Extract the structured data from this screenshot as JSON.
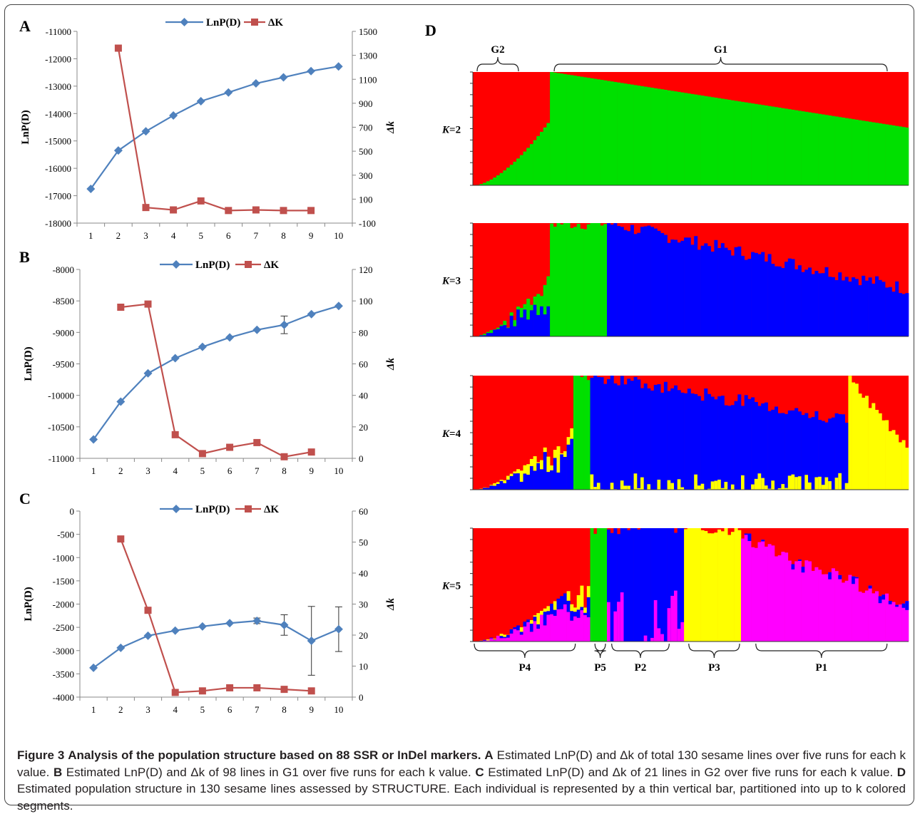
{
  "figure": {
    "caption_label": "Figure 3",
    "caption_title": "Analysis of the population structure based on 88 SSR or InDel markers.",
    "caption_parts": [
      {
        "label": "A",
        "text": "Estimated LnP(D) and Δk of total 130 sesame lines over five runs for each k value."
      },
      {
        "label": "B",
        "text": "Estimated LnP(D) and Δk of 98 lines in G1 over five runs for each k value."
      },
      {
        "label": "C",
        "text": "Estimated LnP(D) and Δk of 21 lines in G2 over five runs for each k value."
      },
      {
        "label": "D",
        "text": "Estimated population structure in 130 sesame lines assessed by STRUCTURE. Each individual is represented by a thin vertical bar, partitioned into up to k colored segments."
      }
    ]
  },
  "colors": {
    "lnp": "#4f81bd",
    "dk": "#c0504d",
    "struct_red": "#ff0000",
    "struct_green": "#00e000",
    "struct_blue": "#0000ff",
    "struct_yellow": "#ffff00",
    "struct_magenta": "#ff00ff"
  },
  "chart_data": [
    {
      "type": "line",
      "panel": "A",
      "x": [
        1,
        2,
        3,
        4,
        5,
        6,
        7,
        8,
        9,
        10
      ],
      "series": [
        {
          "name": "LnP(D)",
          "axis": "left",
          "marker": "diamond",
          "values": [
            -16750,
            -15350,
            -14650,
            -14070,
            -13550,
            -13230,
            -12900,
            -12680,
            -12450,
            -12280
          ]
        },
        {
          "name": "ΔK",
          "axis": "right",
          "marker": "square",
          "values": [
            null,
            1360,
            30,
            10,
            85,
            5,
            10,
            5,
            5,
            null
          ]
        }
      ],
      "ylabel": "LnP(D)",
      "y2label": "Δk",
      "ylim": [
        -18000,
        -11000
      ],
      "y2lim": [
        -100,
        1500
      ],
      "yticks": [
        -18000,
        -17000,
        -16000,
        -15000,
        -14000,
        -13000,
        -12000,
        -11000
      ],
      "y2ticks": [
        -100,
        100,
        300,
        500,
        700,
        900,
        1100,
        1300,
        1500
      ],
      "xticks": [
        1,
        2,
        3,
        4,
        5,
        6,
        7,
        8,
        9,
        10
      ],
      "legend": "top"
    },
    {
      "type": "line",
      "panel": "B",
      "x": [
        1,
        2,
        3,
        4,
        5,
        6,
        7,
        8,
        9,
        10
      ],
      "series": [
        {
          "name": "LnP(D)",
          "axis": "left",
          "marker": "diamond",
          "values": [
            -10700,
            -10100,
            -9650,
            -9410,
            -9230,
            -9080,
            -8960,
            -8880,
            -8710,
            -8580
          ],
          "error": [
            0,
            0,
            0,
            0,
            0,
            0,
            0,
            140,
            0,
            0
          ]
        },
        {
          "name": "ΔK",
          "axis": "right",
          "marker": "square",
          "values": [
            null,
            96,
            98,
            15,
            3,
            7,
            10,
            1,
            4,
            null
          ]
        }
      ],
      "ylabel": "LnP(D)",
      "y2label": "Δk",
      "ylim": [
        -11000,
        -8000
      ],
      "y2lim": [
        0,
        120
      ],
      "yticks": [
        -11000,
        -10500,
        -10000,
        -9500,
        -9000,
        -8500,
        -8000
      ],
      "y2ticks": [
        0,
        20,
        40,
        60,
        80,
        100,
        120
      ],
      "xticks": [
        1,
        2,
        3,
        4,
        5,
        6,
        7,
        8,
        9,
        10
      ],
      "legend": "top"
    },
    {
      "type": "line",
      "panel": "C",
      "x": [
        1,
        2,
        3,
        4,
        5,
        6,
        7,
        8,
        9,
        10
      ],
      "series": [
        {
          "name": "LnP(D)",
          "axis": "left",
          "marker": "diamond",
          "values": [
            -3370,
            -2940,
            -2680,
            -2570,
            -2480,
            -2410,
            -2360,
            -2450,
            -2790,
            -2540
          ],
          "error": [
            0,
            0,
            0,
            0,
            0,
            0,
            60,
            220,
            740,
            480
          ]
        },
        {
          "name": "ΔK",
          "axis": "right",
          "marker": "square",
          "values": [
            null,
            51,
            28,
            1.5,
            2,
            3,
            3,
            2.5,
            2,
            null
          ]
        }
      ],
      "ylabel": "LnP(D)",
      "y2label": "Δk",
      "ylim": [
        -4000,
        0
      ],
      "y2lim": [
        0,
        60
      ],
      "yticks": [
        -4000,
        -3500,
        -3000,
        -2500,
        -2000,
        -1500,
        -1000,
        -500,
        0
      ],
      "y2ticks": [
        0,
        10,
        20,
        30,
        40,
        50,
        60
      ],
      "xticks": [
        1,
        2,
        3,
        4,
        5,
        6,
        7,
        8,
        9,
        10
      ],
      "legend": "top"
    },
    {
      "type": "bar",
      "panel": "D",
      "stacked": true,
      "individuals": 130,
      "groups_top": [
        {
          "label": "G2",
          "start": 0,
          "end": 20
        },
        {
          "label": "G1",
          "start": 23,
          "end": 130
        }
      ],
      "groups_bottom": [
        {
          "label": "P4",
          "start": 0,
          "end": 31
        },
        {
          "label": "P5",
          "start": 36,
          "end": 40
        },
        {
          "label": "P2",
          "start": 41,
          "end": 59
        },
        {
          "label": "P3",
          "start": 64,
          "end": 80
        },
        {
          "label": "P1",
          "start": 84,
          "end": 124
        }
      ],
      "rows": [
        {
          "label": "K=2",
          "clusters": [
            "red",
            "green"
          ],
          "segments": [
            {
              "color": "red",
              "from": 0,
              "to": 23,
              "profile": "full"
            },
            {
              "color": "green",
              "from": 23,
              "to": 130,
              "profile": "dominant",
              "start_frac": 1.0,
              "end_frac": 0.51
            }
          ]
        },
        {
          "label": "K=3",
          "clusters": [
            "red",
            "green",
            "blue"
          ],
          "segments": [
            {
              "color": "red",
              "from": 0,
              "to": 23
            },
            {
              "color": "green",
              "from": 23,
              "to": 40
            },
            {
              "color": "blue",
              "from": 40,
              "to": 130,
              "start_frac": 1.0,
              "end_frac": 0.42
            }
          ]
        },
        {
          "label": "K=4",
          "clusters": [
            "red",
            "green",
            "blue",
            "yellow"
          ],
          "segments": [
            {
              "color": "red",
              "from": 0,
              "to": 30
            },
            {
              "color": "green",
              "from": 30,
              "to": 35
            },
            {
              "color": "blue",
              "from": 35,
              "to": 112,
              "start_frac": 1.0,
              "end_frac": 0.62
            },
            {
              "color": "yellow",
              "from": 112,
              "to": 130,
              "start_frac": 0.95,
              "end_frac": 0.4
            }
          ]
        },
        {
          "label": "K=5",
          "clusters": [
            "red",
            "green",
            "blue",
            "yellow",
            "magenta"
          ],
          "segments": [
            {
              "color": "red",
              "from": 0,
              "to": 35
            },
            {
              "color": "green",
              "from": 35,
              "to": 40
            },
            {
              "color": "blue",
              "from": 40,
              "to": 63
            },
            {
              "color": "yellow",
              "from": 63,
              "to": 80
            },
            {
              "color": "magenta",
              "from": 80,
              "to": 130,
              "start_frac": 0.92,
              "end_frac": 0.33
            }
          ]
        }
      ]
    }
  ]
}
